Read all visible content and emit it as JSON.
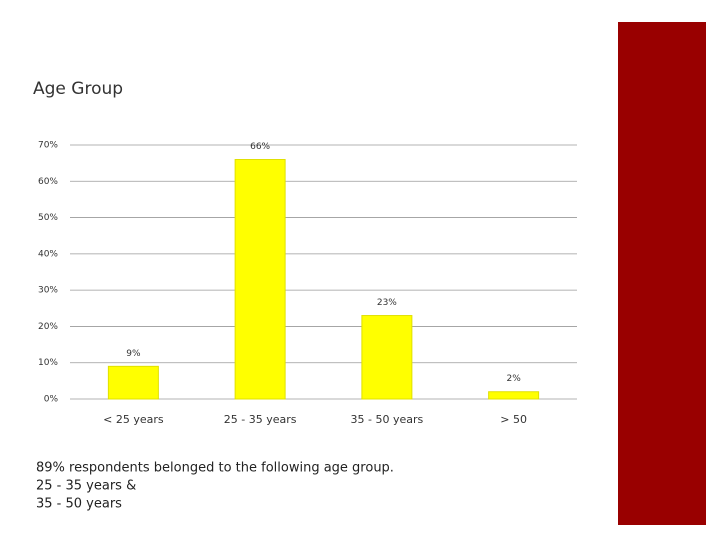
{
  "chart_data": {
    "type": "bar",
    "title": "Age Group",
    "categories": [
      "< 25 years",
      "25 - 35 years",
      "35 - 50 years",
      "> 50"
    ],
    "values": [
      9,
      66,
      23,
      2
    ],
    "value_labels": [
      "9%",
      "66%",
      "23%",
      "2%"
    ],
    "color": "#ffff00",
    "ylim": [
      0,
      70
    ],
    "yticks": [
      {
        "value": 0,
        "label": "0%"
      },
      {
        "value": 10,
        "label": "10%"
      },
      {
        "value": 20,
        "label": "20%"
      },
      {
        "value": 30,
        "label": "30%"
      },
      {
        "value": 40,
        "label": "40%"
      },
      {
        "value": 50,
        "label": "50%"
      },
      {
        "value": 60,
        "label": "60%"
      },
      {
        "value": 70,
        "label": "70%"
      }
    ],
    "grid": true,
    "caption": [
      "89% respondents belonged to the following age group.",
      "25 - 35 years &",
      "35 - 50 years"
    ]
  }
}
